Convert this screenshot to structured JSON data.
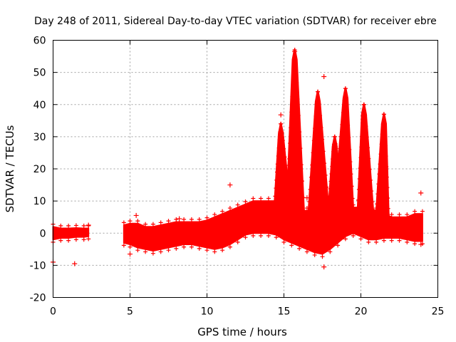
{
  "chart_data": {
    "type": "scatter",
    "title": "Day 248 of 2011, Sidereal Day-to-day VTEC variation (SDTVAR) for receiver ebre",
    "xlabel": "GPS time / hours",
    "ylabel": "SDTVAR / TECUs",
    "xlim": [
      0,
      25
    ],
    "ylim": [
      -20,
      60
    ],
    "xticks": [
      0,
      5,
      10,
      15,
      20,
      25
    ],
    "yticks": [
      -20,
      -10,
      0,
      10,
      20,
      30,
      40,
      50,
      60
    ],
    "grid": true,
    "marker": "+",
    "color": "#ff0000",
    "series": [
      {
        "name": "SDTVAR",
        "band": [
          {
            "x": 0.0,
            "lo": -2.0,
            "hi": 2.0
          },
          {
            "x": 0.5,
            "lo": -1.5,
            "hi": 1.5
          },
          {
            "x": 1.0,
            "lo": -1.5,
            "hi": 1.5
          },
          {
            "x": 1.5,
            "lo": -1.2,
            "hi": 1.6
          },
          {
            "x": 2.0,
            "lo": -1.2,
            "hi": 1.5
          },
          {
            "x": 2.3,
            "lo": -1.0,
            "hi": 1.5
          },
          {
            "gap": true
          },
          {
            "x": 4.6,
            "lo": -3.0,
            "hi": 2.5
          },
          {
            "x": 5.0,
            "lo": -3.5,
            "hi": 3.0
          },
          {
            "x": 5.5,
            "lo": -4.5,
            "hi": 3.0
          },
          {
            "x": 6.0,
            "lo": -5.0,
            "hi": 2.0
          },
          {
            "x": 6.5,
            "lo": -5.5,
            "hi": 2.0
          },
          {
            "x": 7.0,
            "lo": -5.0,
            "hi": 2.5
          },
          {
            "x": 7.5,
            "lo": -4.5,
            "hi": 3.0
          },
          {
            "x": 8.0,
            "lo": -4.0,
            "hi": 3.5
          },
          {
            "x": 8.5,
            "lo": -3.5,
            "hi": 3.5
          },
          {
            "x": 9.0,
            "lo": -3.5,
            "hi": 3.5
          },
          {
            "x": 9.5,
            "lo": -4.0,
            "hi": 3.5
          },
          {
            "x": 10.0,
            "lo": -4.5,
            "hi": 4.0
          },
          {
            "x": 10.5,
            "lo": -5.0,
            "hi": 5.0
          },
          {
            "x": 11.0,
            "lo": -4.5,
            "hi": 6.0
          },
          {
            "x": 11.5,
            "lo": -3.5,
            "hi": 7.0
          },
          {
            "x": 12.0,
            "lo": -2.0,
            "hi": 8.0
          },
          {
            "x": 12.5,
            "lo": -0.5,
            "hi": 9.0
          },
          {
            "x": 13.0,
            "lo": 0.0,
            "hi": 10.0
          },
          {
            "x": 13.5,
            "lo": 0.0,
            "hi": 10.0
          },
          {
            "x": 14.0,
            "lo": 0.0,
            "hi": 10.0
          },
          {
            "x": 14.5,
            "lo": -0.5,
            "hi": 10.0
          },
          {
            "x": 15.0,
            "lo": -2.0,
            "hi": 10.0
          },
          {
            "x": 15.5,
            "lo": -3.0,
            "hi": 9.0
          },
          {
            "x": 16.0,
            "lo": -4.0,
            "hi": 7.0
          },
          {
            "x": 16.5,
            "lo": -5.0,
            "hi": 7.0
          },
          {
            "x": 17.0,
            "lo": -6.0,
            "hi": 7.0
          },
          {
            "x": 17.5,
            "lo": -6.5,
            "hi": 7.5
          },
          {
            "x": 18.0,
            "lo": -5.0,
            "hi": 8.0
          },
          {
            "x": 18.5,
            "lo": -3.0,
            "hi": 9.0
          },
          {
            "x": 19.0,
            "lo": -1.0,
            "hi": 9.0
          },
          {
            "x": 19.5,
            "lo": 0.0,
            "hi": 8.0
          },
          {
            "x": 20.0,
            "lo": -1.0,
            "hi": 8.0
          },
          {
            "x": 20.5,
            "lo": -2.0,
            "hi": 8.0
          },
          {
            "x": 21.0,
            "lo": -2.0,
            "hi": 7.0
          },
          {
            "x": 21.5,
            "lo": -1.5,
            "hi": 6.0
          },
          {
            "x": 22.0,
            "lo": -1.5,
            "hi": 5.0
          },
          {
            "x": 22.5,
            "lo": -1.5,
            "hi": 5.0
          },
          {
            "x": 23.0,
            "lo": -2.0,
            "hi": 5.0
          },
          {
            "x": 23.5,
            "lo": -2.5,
            "hi": 6.0
          },
          {
            "x": 24.0,
            "lo": -2.5,
            "hi": 6.0
          }
        ],
        "spikes": [
          {
            "x0": 14.4,
            "x1": 15.4,
            "peak_x": 14.8,
            "peak": 34.0
          },
          {
            "x0": 15.2,
            "x1": 16.3,
            "peak_x": 15.7,
            "peak": 57.0
          },
          {
            "x0": 16.6,
            "x1": 17.9,
            "peak_x": 17.2,
            "peak": 44.0
          },
          {
            "x0": 17.9,
            "x1": 18.7,
            "peak_x": 18.3,
            "peak": 30.0
          },
          {
            "x0": 18.3,
            "x1": 19.5,
            "peak_x": 19.0,
            "peak": 45.0
          },
          {
            "x0": 19.8,
            "x1": 20.8,
            "peak_x": 20.2,
            "peak": 40.0
          },
          {
            "x0": 21.0,
            "x1": 21.8,
            "peak_x": 21.5,
            "peak": 37.0
          }
        ],
        "outliers": [
          {
            "x": 0.0,
            "y": -9.0
          },
          {
            "x": 1.4,
            "y": -9.5
          },
          {
            "x": 2.3,
            "y": 2.5
          },
          {
            "x": 5.0,
            "y": -6.5
          },
          {
            "x": 5.4,
            "y": 5.5
          },
          {
            "x": 8.2,
            "y": 4.5
          },
          {
            "x": 11.5,
            "y": 15.0
          },
          {
            "x": 14.8,
            "y": 36.8
          },
          {
            "x": 15.7,
            "y": 56.5
          },
          {
            "x": 16.5,
            "y": 11.0
          },
          {
            "x": 17.6,
            "y": -10.5
          },
          {
            "x": 17.6,
            "y": 48.7
          },
          {
            "x": 23.9,
            "y": 12.5
          },
          {
            "x": 23.9,
            "y": -3.5
          }
        ]
      }
    ]
  }
}
